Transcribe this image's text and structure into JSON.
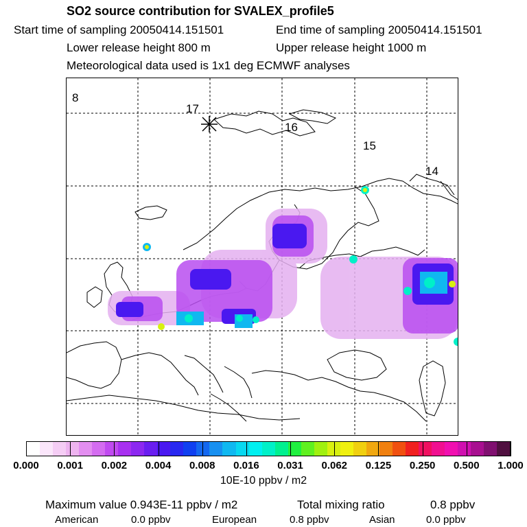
{
  "header": {
    "title": "SO2 source contribution for SVALEX_profile5",
    "start": "Start time of sampling 20050414.151501",
    "end": "End time of sampling 20050414.151501",
    "lower": "Lower release height  800 m",
    "upper": "Upper release height 1000 m",
    "met": "Meteorological data used is 1x1 deg ECMWF analyses"
  },
  "map": {
    "contour_labels": [
      "8",
      "17",
      "16",
      "15",
      "14"
    ]
  },
  "colorbar": {
    "colors": [
      "#ffffff",
      "#fbe6fb",
      "#f5cdf5",
      "#eeb4f0",
      "#e38ef0",
      "#d46cf0",
      "#c04af0",
      "#a830f0",
      "#8c28f0",
      "#6a1ef0",
      "#4a18f0",
      "#2828f0",
      "#1040f0",
      "#1468f0",
      "#1890f0",
      "#10b8f0",
      "#08d8f0",
      "#00f0f0",
      "#00f0c8",
      "#00f090",
      "#20f040",
      "#60f020",
      "#a0f010",
      "#d8f010",
      "#f0f010",
      "#f0d010",
      "#f0a810",
      "#f08010",
      "#f05010",
      "#f02020",
      "#f01060",
      "#f01090",
      "#f010b0",
      "#d010b0",
      "#a81090",
      "#801070",
      "#501040"
    ],
    "tick_labels": [
      "0.000",
      "0.001",
      "0.002",
      "0.004",
      "0.008",
      "0.016",
      "0.031",
      "0.062",
      "0.125",
      "0.250",
      "0.500",
      "1.000"
    ],
    "unit": "10E-10 ppbv / m2"
  },
  "summary": {
    "max_label": "Maximum value  0.943E-11 ppbv / m2",
    "total_label": "Total mixing ratio",
    "total_value": "0.8 ppbv",
    "american_label": "American",
    "american_value": "0.0 ppbv",
    "european_label": "European",
    "european_value": "0.8 ppbv",
    "asian_label": "Asian",
    "asian_value": "0.0 ppbv"
  }
}
